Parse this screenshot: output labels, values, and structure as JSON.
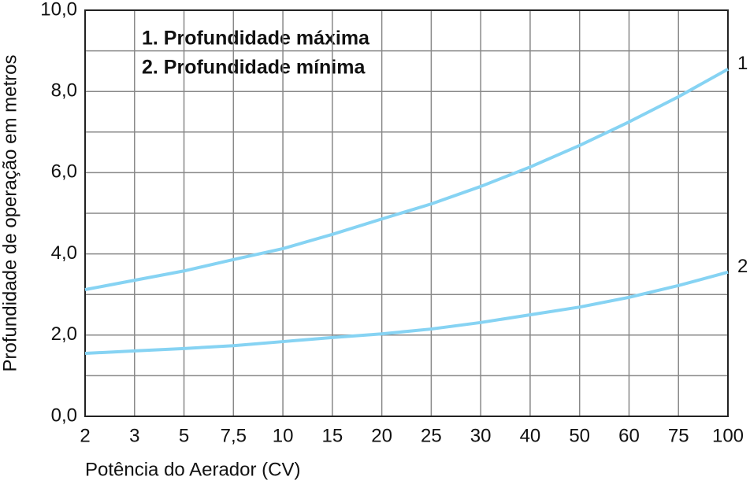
{
  "chart_data": {
    "type": "line",
    "x_label": "Potência do Aerador (CV)",
    "y_label": "Profundidade de operação em metros",
    "categories": [
      "2",
      "3",
      "5",
      "7,5",
      "10",
      "15",
      "20",
      "25",
      "30",
      "40",
      "50",
      "60",
      "75",
      "100"
    ],
    "series": [
      {
        "name": "1. Profundidade máxima",
        "end_label": "1",
        "color": "#86d3f3",
        "values": [
          3.12,
          3.35,
          3.58,
          3.86,
          4.13,
          4.48,
          4.86,
          5.23,
          5.66,
          6.14,
          6.67,
          7.25,
          7.87,
          8.55
        ]
      },
      {
        "name": "2. Profundidade mínima",
        "end_label": "2",
        "color": "#86d3f3",
        "values": [
          1.55,
          1.61,
          1.67,
          1.74,
          1.84,
          1.94,
          2.03,
          2.15,
          2.31,
          2.5,
          2.69,
          2.93,
          3.22,
          3.55
        ]
      }
    ],
    "ylim": [
      0,
      10
    ],
    "yticks": [
      {
        "value": 0,
        "label": "0,0"
      },
      {
        "value": 2,
        "label": "2,0"
      },
      {
        "value": 4,
        "label": "4,0"
      },
      {
        "value": 6,
        "label": "6,0"
      },
      {
        "value": 8,
        "label": "8,0"
      },
      {
        "value": 10,
        "label": "10,0"
      }
    ],
    "minor_yticks": [
      1,
      3,
      5,
      7,
      9
    ],
    "grid": true
  }
}
